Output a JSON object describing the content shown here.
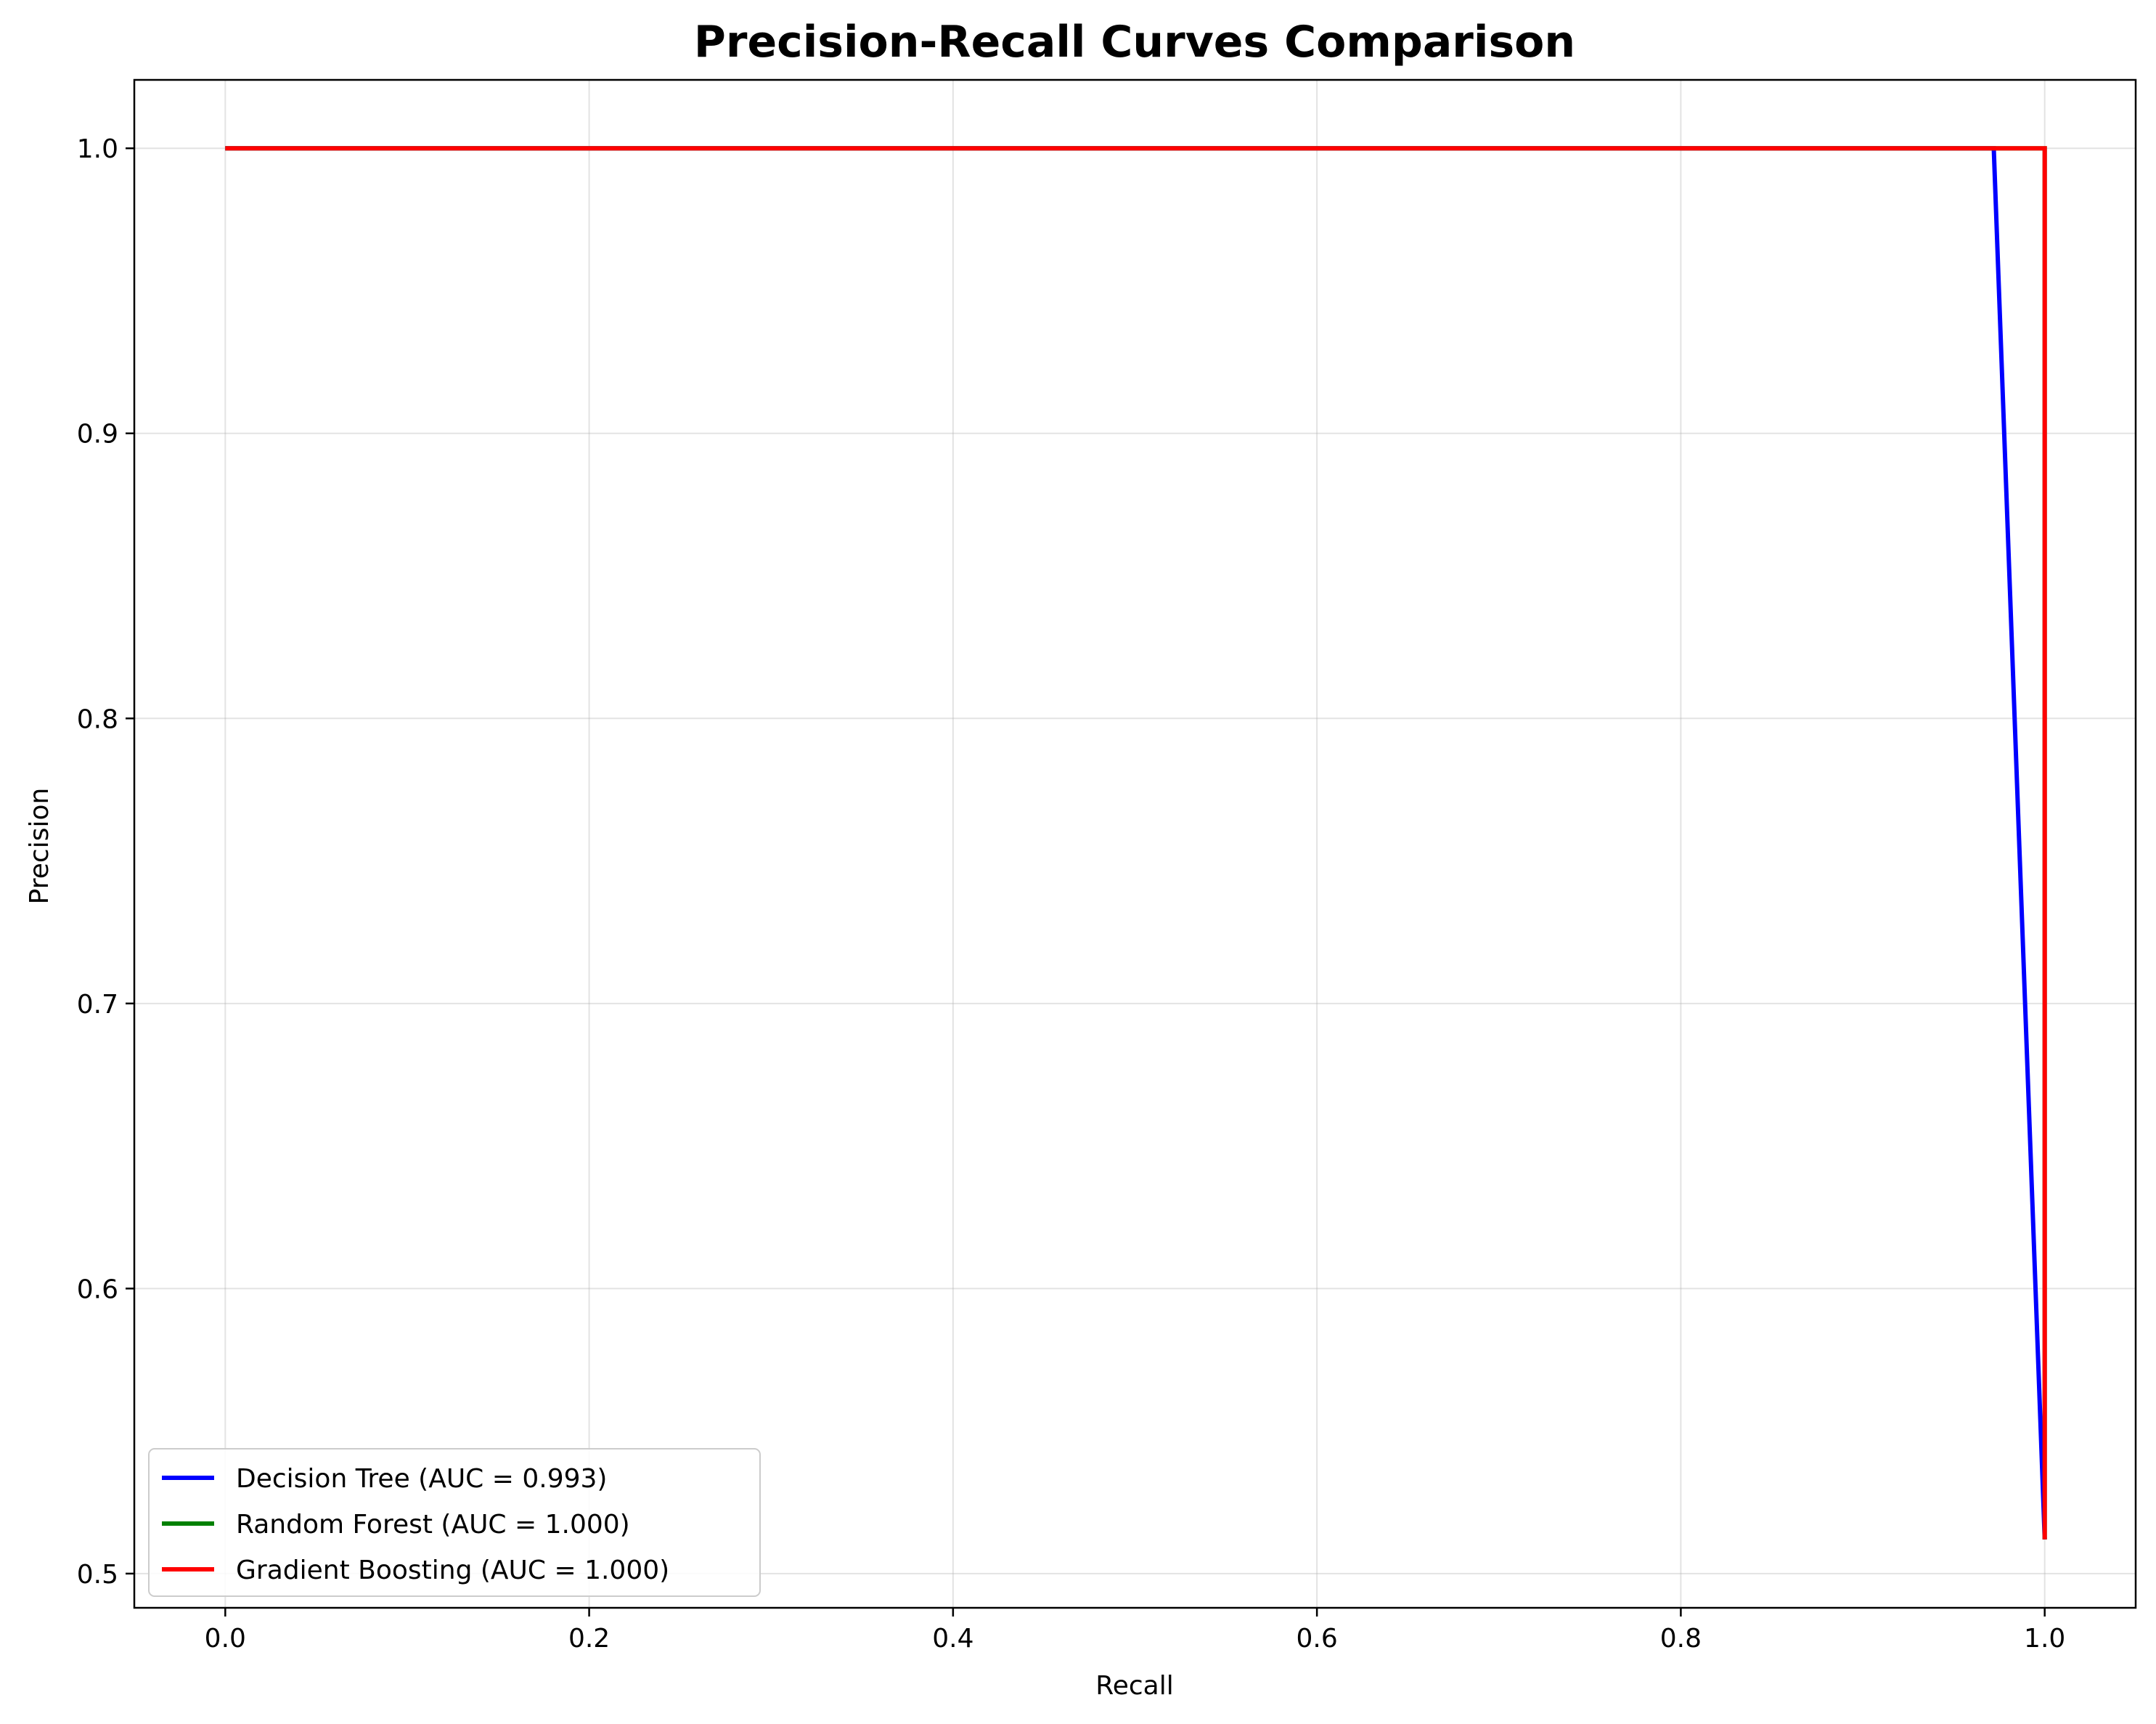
{
  "chart_data": {
    "type": "line",
    "title": "Precision-Recall Curves Comparison",
    "xlabel": "Recall",
    "ylabel": "Precision",
    "xlim": [
      -0.05,
      1.05
    ],
    "ylim": [
      0.488,
      1.024
    ],
    "xticks": [
      "0.0",
      "0.2",
      "0.4",
      "0.6",
      "0.8",
      "1.0"
    ],
    "yticks": [
      "0.5",
      "0.6",
      "0.7",
      "0.8",
      "0.9",
      "1.0"
    ],
    "grid": true,
    "legend_position": "lower-left",
    "series": [
      {
        "name": "Decision Tree (AUC = 0.993)",
        "color": "#0000ff",
        "x": [
          0.0,
          0.972,
          1.0,
          1.0
        ],
        "y": [
          1.0,
          1.0,
          0.512,
          0.512
        ]
      },
      {
        "name": "Random Forest (AUC = 1.000)",
        "color": "#008000",
        "x": [
          0.0,
          1.0,
          1.0
        ],
        "y": [
          1.0,
          1.0,
          0.512
        ]
      },
      {
        "name": "Gradient Boosting (AUC = 1.000)",
        "color": "#ff0000",
        "x": [
          0.0,
          1.0,
          1.0
        ],
        "y": [
          1.0,
          1.0,
          0.512
        ]
      }
    ]
  }
}
